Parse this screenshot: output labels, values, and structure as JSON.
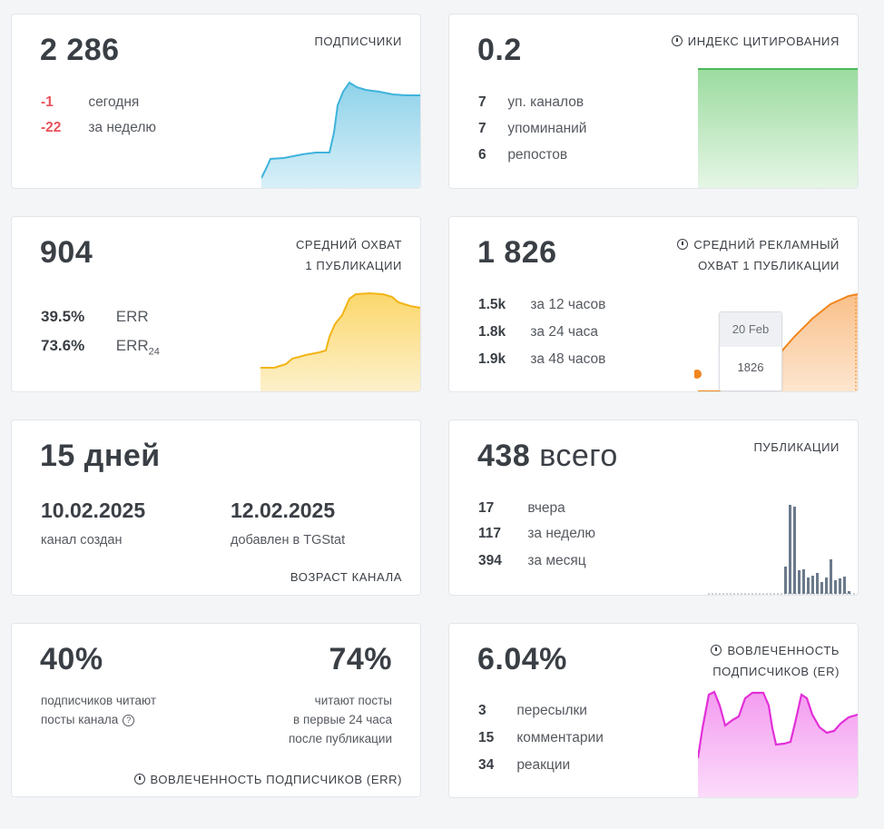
{
  "subscribers": {
    "title": "ПОДПИСЧИКИ",
    "value": "2 286",
    "rows": [
      {
        "value": "-1",
        "label": "сегодня"
      },
      {
        "value": "-22",
        "label": "за неделю"
      }
    ],
    "color": "#7fcbe6"
  },
  "citation": {
    "title": "ИНДЕКС ЦИТИРОВАНИЯ",
    "value": "0.2",
    "rows": [
      {
        "value": "7",
        "label": "уп. каналов"
      },
      {
        "value": "7",
        "label": "упоминаний"
      },
      {
        "value": "6",
        "label": "репостов"
      }
    ],
    "color": "#5ec26a"
  },
  "reach": {
    "title_line1": "СРЕДНИЙ ОХВАТ",
    "title_line2": "1 ПУБЛИКАЦИИ",
    "value": "904",
    "rows": [
      {
        "value": "39.5%",
        "label": "ERR",
        "sub": ""
      },
      {
        "value": "73.6%",
        "label": "ERR",
        "sub": "24"
      }
    ],
    "color": "#f6c23e"
  },
  "ad_reach": {
    "title_line1": "СРЕДНИЙ РЕКЛАМНЫЙ",
    "title_line2": "ОХВАТ 1 ПУБЛИКАЦИИ",
    "value": "1 826",
    "rows": [
      {
        "value": "1.5k",
        "label": "за 12 часов"
      },
      {
        "value": "1.8k",
        "label": "за 24 часа"
      },
      {
        "value": "1.9k",
        "label": "за 48 часов"
      }
    ],
    "tooltip": {
      "date": "20 Feb",
      "value": "1826"
    },
    "color": "#f39a3c"
  },
  "age": {
    "value": "15 дней",
    "created_date": "10.02.2025",
    "created_label": "канал создан",
    "added_date": "12.02.2025",
    "added_label": "добавлен в TGStat",
    "title": "ВОЗРАСТ КАНАЛА"
  },
  "posts": {
    "title": "ПУБЛИКАЦИИ",
    "value": "438",
    "unit": "всего",
    "rows": [
      {
        "value": "17",
        "label": "вчера"
      },
      {
        "value": "117",
        "label": "за неделю"
      },
      {
        "value": "394",
        "label": "за месяц"
      }
    ],
    "color": "#6b7a8c"
  },
  "err_card": {
    "left_value": "40%",
    "left_line1": "подписчиков читают",
    "left_line2": "посты канала",
    "right_value": "74%",
    "right_line1": "читают посты",
    "right_line2": "в первые 24 часа",
    "right_line3": "после публикации",
    "title": "ВОВЛЕЧЕННОСТЬ ПОДПИСЧИКОВ (ERR)"
  },
  "er_card": {
    "title_line1": "ВОВЛЕЧЕННОСТЬ",
    "title_line2": "ПОДПИСЧИКОВ (ER)",
    "value": "6.04%",
    "rows": [
      {
        "value": "3",
        "label": "пересылки"
      },
      {
        "value": "15",
        "label": "комментарии"
      },
      {
        "value": "34",
        "label": "реакции"
      }
    ],
    "color": "#e94fe0"
  }
}
